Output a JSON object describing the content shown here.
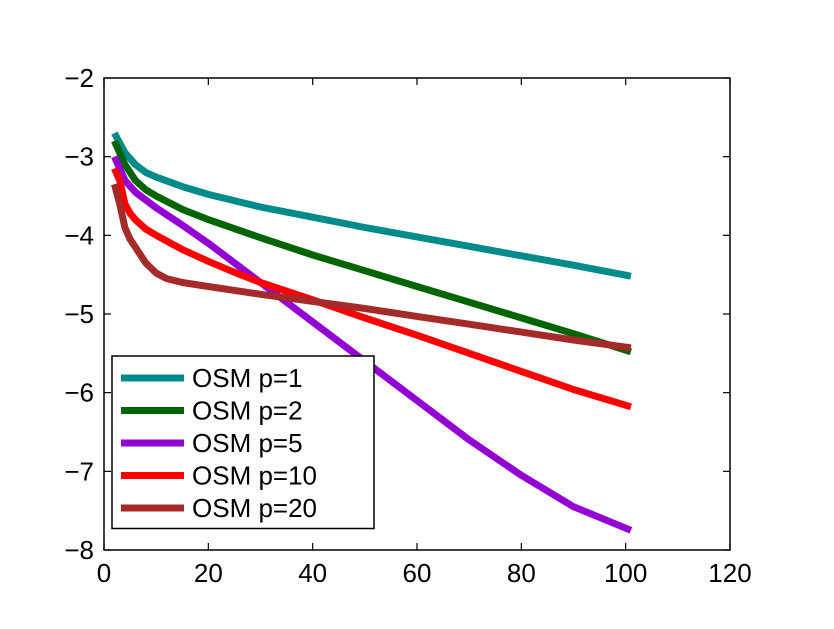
{
  "chart_data": {
    "type": "line",
    "title": "",
    "xlabel": "",
    "ylabel": "",
    "xlim": [
      0,
      120
    ],
    "ylim": [
      -8,
      -2
    ],
    "xticks": [
      0,
      20,
      40,
      60,
      80,
      100,
      120
    ],
    "yticks": [
      -8,
      -7,
      -6,
      -5,
      -4,
      -3,
      -2
    ],
    "xtick_labels": [
      "0",
      "20",
      "40",
      "60",
      "80",
      "100",
      "120"
    ],
    "ytick_labels": [
      "−8",
      "−7",
      "−6",
      "−5",
      "−4",
      "−3",
      "−2"
    ],
    "grid": false,
    "legend_position": "bottom-left",
    "series": [
      {
        "name": "OSM p=1",
        "color": "#008b8b",
        "x": [
          2,
          4,
          6,
          8,
          10,
          15,
          20,
          30,
          40,
          50,
          60,
          70,
          80,
          90,
          101
        ],
        "y": [
          -2.7,
          -2.95,
          -3.1,
          -3.2,
          -3.26,
          -3.38,
          -3.48,
          -3.64,
          -3.77,
          -3.9,
          -4.02,
          -4.14,
          -4.26,
          -4.38,
          -4.52
        ]
      },
      {
        "name": "OSM p=2",
        "color": "#006400",
        "x": [
          2,
          4,
          6,
          8,
          10,
          15,
          20,
          30,
          40,
          50,
          60,
          70,
          80,
          90,
          101
        ],
        "y": [
          -2.8,
          -3.1,
          -3.3,
          -3.42,
          -3.5,
          -3.67,
          -3.8,
          -4.03,
          -4.25,
          -4.45,
          -4.65,
          -4.85,
          -5.05,
          -5.25,
          -5.48
        ]
      },
      {
        "name": "OSM p=5",
        "color": "#9400d3",
        "x": [
          2,
          4,
          6,
          8,
          10,
          15,
          20,
          30,
          40,
          50,
          60,
          70,
          80,
          90,
          101
        ],
        "y": [
          -3.0,
          -3.3,
          -3.45,
          -3.55,
          -3.65,
          -3.87,
          -4.1,
          -4.6,
          -5.1,
          -5.6,
          -6.1,
          -6.6,
          -7.05,
          -7.45,
          -7.75
        ]
      },
      {
        "name": "OSM p=10",
        "color": "#ff0000",
        "x": [
          2,
          3,
          4,
          5,
          6,
          8,
          10,
          15,
          20,
          25,
          30,
          40,
          50,
          60,
          70,
          80,
          90,
          101
        ],
        "y": [
          -3.15,
          -3.3,
          -3.6,
          -3.72,
          -3.8,
          -3.92,
          -4.0,
          -4.18,
          -4.33,
          -4.47,
          -4.6,
          -4.82,
          -5.05,
          -5.27,
          -5.5,
          -5.73,
          -5.96,
          -6.18
        ]
      },
      {
        "name": "OSM p=20",
        "color": "#a52a2a",
        "x": [
          2,
          3,
          4,
          5,
          6,
          7,
          8,
          10,
          12,
          15,
          20,
          30,
          40,
          50,
          60,
          70,
          80,
          90,
          101
        ],
        "y": [
          -3.35,
          -3.6,
          -3.9,
          -4.05,
          -4.15,
          -4.25,
          -4.35,
          -4.48,
          -4.55,
          -4.6,
          -4.65,
          -4.75,
          -4.84,
          -4.93,
          -5.03,
          -5.13,
          -5.23,
          -5.33,
          -5.43
        ]
      }
    ]
  }
}
